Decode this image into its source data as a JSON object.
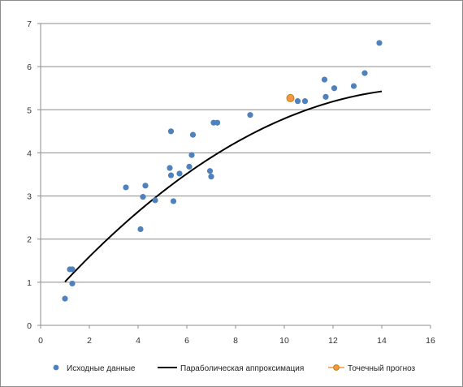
{
  "chart_data": {
    "type": "scatter",
    "xlim": [
      0,
      16
    ],
    "ylim": [
      0,
      7
    ],
    "x_ticks": [
      0,
      2,
      4,
      6,
      8,
      10,
      12,
      14,
      16
    ],
    "y_ticks": [
      0,
      1,
      2,
      3,
      4,
      5,
      6,
      7
    ],
    "grid": "horizontal",
    "legend_position": "bottom",
    "colors": {
      "points": "#4f81bd",
      "curve": "#000000",
      "forecast_fill": "#f79646",
      "forecast_edge": "#b8860b",
      "grid": "#8c8c8c",
      "axis": "#8c8c8c"
    },
    "series": [
      {
        "name": "Исходные данные",
        "kind": "scatter",
        "points": [
          [
            1.0,
            0.62
          ],
          [
            1.2,
            1.3
          ],
          [
            1.3,
            1.3
          ],
          [
            1.3,
            0.97
          ],
          [
            3.5,
            3.2
          ],
          [
            4.1,
            2.23
          ],
          [
            4.2,
            2.98
          ],
          [
            4.3,
            3.24
          ],
          [
            4.7,
            2.9
          ],
          [
            5.3,
            3.65
          ],
          [
            5.35,
            4.5
          ],
          [
            5.35,
            3.48
          ],
          [
            5.45,
            2.88
          ],
          [
            5.7,
            3.52
          ],
          [
            6.1,
            3.68
          ],
          [
            6.2,
            3.95
          ],
          [
            6.25,
            4.42
          ],
          [
            6.95,
            3.58
          ],
          [
            7.0,
            3.45
          ],
          [
            7.1,
            4.7
          ],
          [
            7.25,
            4.7
          ],
          [
            8.6,
            4.88
          ],
          [
            10.55,
            5.2
          ],
          [
            10.85,
            5.2
          ],
          [
            11.65,
            5.7
          ],
          [
            11.7,
            5.3
          ],
          [
            12.05,
            5.5
          ],
          [
            12.85,
            5.55
          ],
          [
            13.3,
            5.85
          ],
          [
            13.9,
            6.55
          ]
        ]
      },
      {
        "name": "Параболическая аппроксимация",
        "kind": "line",
        "coefficients": {
          "a": -0.02018,
          "b": 0.6425,
          "c": 0.387
        },
        "x_range": [
          1.0,
          14.0
        ]
      },
      {
        "name": "Точечный прогноз",
        "kind": "point",
        "points": [
          [
            10.25,
            5.27
          ]
        ]
      }
    ]
  }
}
